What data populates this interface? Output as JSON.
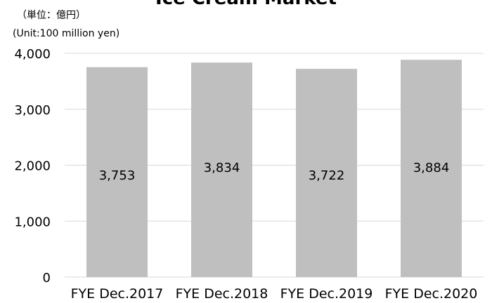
{
  "chart_data": {
    "type": "bar",
    "title": "Ice Cream Market",
    "unit_ja": "（単位：億円）",
    "unit_en": "(Unit:100 million yen)",
    "categories": [
      "FYE Dec.2017",
      "FYE Dec.2018",
      "FYE Dec.2019",
      "FYE Dec.2020"
    ],
    "values": [
      3753,
      3834,
      3722,
      3884
    ],
    "value_labels": [
      "3,753",
      "3,834",
      "3,722",
      "3,884"
    ],
    "y_ticks": [
      0,
      1000,
      2000,
      3000,
      4000
    ],
    "y_tick_labels": [
      "0",
      "1,000",
      "2,000",
      "3,000",
      "4,000"
    ],
    "ylim": [
      0,
      4000
    ],
    "grid": true,
    "bar_color": "#bfbfbf",
    "grid_color": "#d9d9d9"
  }
}
